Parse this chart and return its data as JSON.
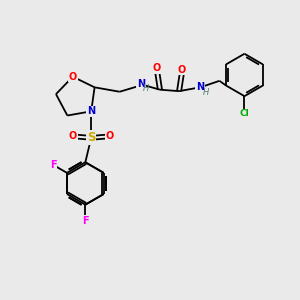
{
  "background_color": "#eaeaea",
  "fig_size": [
    3.0,
    3.0
  ],
  "dpi": 100,
  "atom_colors": {
    "C": "#000000",
    "N": "#0000cc",
    "O": "#ff0000",
    "S": "#ccaa00",
    "F": "#ff00ff",
    "Cl": "#00aa00",
    "H": "#557777"
  },
  "bond_color": "#000000",
  "bond_width": 1.3,
  "font_size": 7.0,
  "xlim": [
    0,
    10
  ],
  "ylim": [
    0,
    10
  ]
}
